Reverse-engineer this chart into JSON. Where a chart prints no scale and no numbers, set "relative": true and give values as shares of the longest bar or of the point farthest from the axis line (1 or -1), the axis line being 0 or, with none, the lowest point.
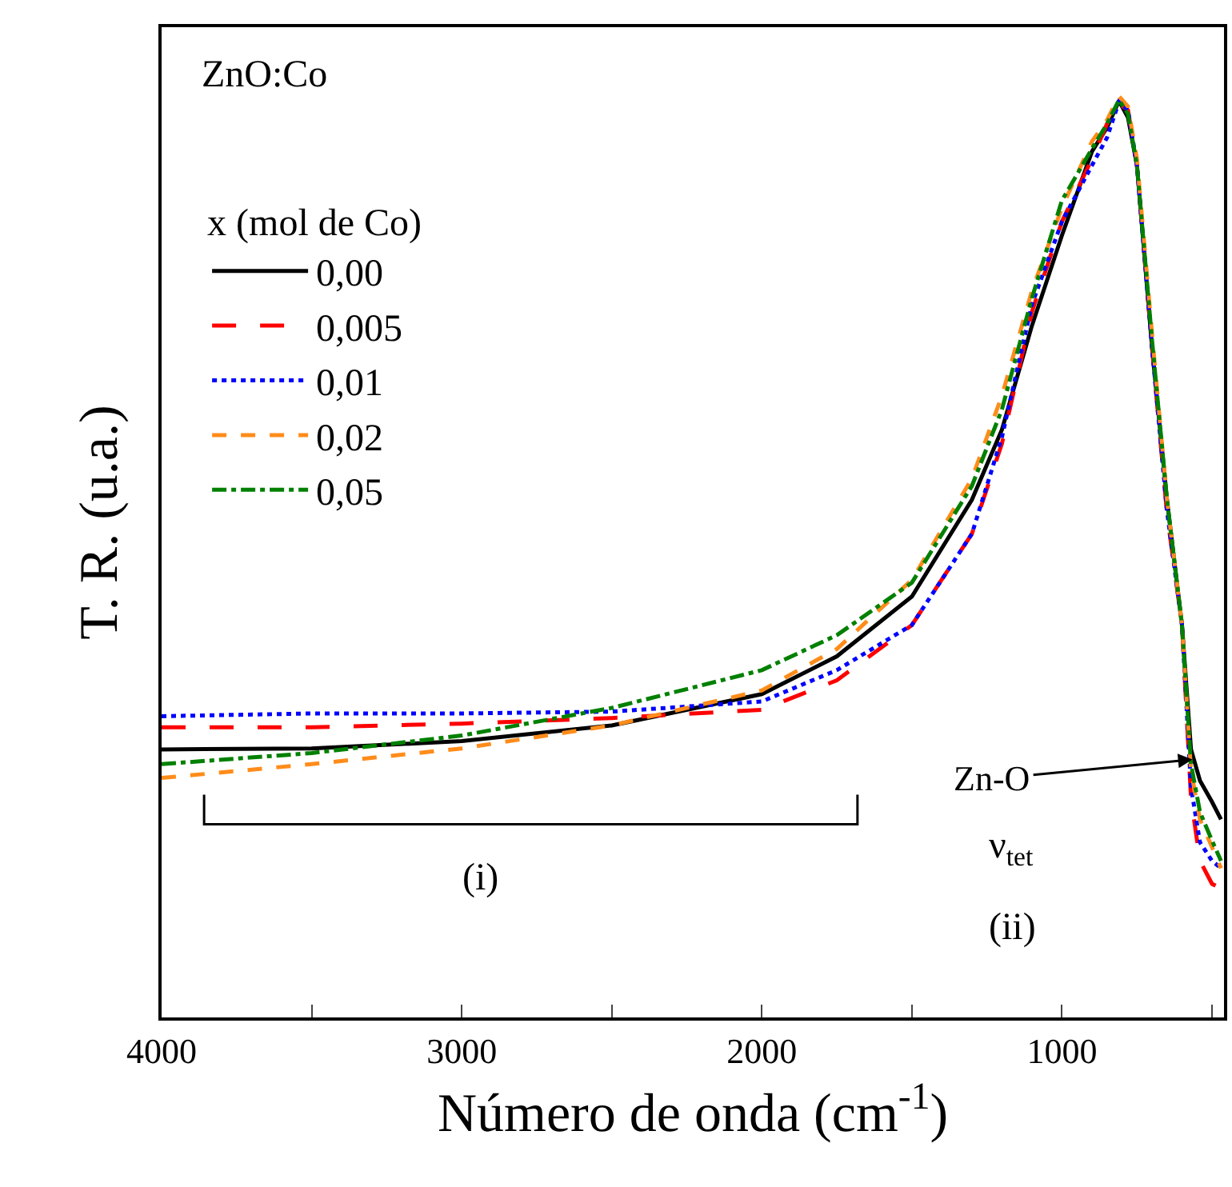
{
  "chart_data": {
    "type": "line",
    "relative": true,
    "xlabel": "Número de onda (cm$^{-1}$)",
    "ylabel": "T. R. (u.a.)",
    "legend_title": "x (mol de Co)",
    "x": [
      4000,
      3500,
      3000,
      2500,
      2000,
      1750,
      1500,
      1300,
      1200,
      1100,
      1000,
      900,
      850,
      810,
      780,
      750,
      700,
      650,
      600,
      570,
      540,
      500,
      470
    ],
    "xlim": [
      4000,
      460
    ],
    "xticks": [
      4000,
      {
        "value": 3500,
        "label": null
      },
      3000,
      {
        "value": 2500,
        "label": null
      },
      2000,
      {
        "value": 1500,
        "label": null
      },
      1000,
      {
        "value": 500,
        "label": null
      }
    ],
    "series": [
      {
        "name": "0,00",
        "color": "#000000",
        "line_style": "solid",
        "values": [
          0.291,
          0.292,
          0.3,
          0.317,
          0.351,
          0.392,
          0.457,
          0.562,
          0.638,
          0.751,
          0.849,
          0.94,
          0.966,
          0.995,
          0.977,
          0.925,
          0.728,
          0.562,
          0.426,
          0.291,
          0.257,
          0.234,
          0.215
        ]
      },
      {
        "name": "0,005",
        "color": "#ff0000",
        "line_style": "long-dashed",
        "values": [
          0.315,
          0.315,
          0.319,
          0.325,
          0.334,
          0.366,
          0.426,
          0.525,
          0.623,
          0.766,
          0.864,
          0.932,
          0.97,
          0.992,
          0.985,
          0.925,
          0.728,
          0.547,
          0.426,
          0.238,
          0.17,
          0.145,
          0.14
        ]
      },
      {
        "name": "0,01",
        "color": "#0000ff",
        "line_style": "dotted",
        "values": [
          0.327,
          0.33,
          0.33,
          0.332,
          0.343,
          0.377,
          0.426,
          0.525,
          0.63,
          0.774,
          0.864,
          0.925,
          0.955,
          0.994,
          0.985,
          0.925,
          0.728,
          0.55,
          0.426,
          0.25,
          0.19,
          0.17,
          0.162
        ]
      },
      {
        "name": "0,02",
        "color": "#ff8c1a",
        "line_style": "dashed",
        "values": [
          0.26,
          0.275,
          0.292,
          0.317,
          0.355,
          0.4,
          0.475,
          0.585,
          0.675,
          0.789,
          0.879,
          0.951,
          0.974,
          1.0,
          0.989,
          0.932,
          0.743,
          0.562,
          0.426,
          0.268,
          0.215,
          0.185,
          0.162
        ]
      },
      {
        "name": "0,05",
        "color": "#008000",
        "line_style": "dash-dot",
        "values": [
          0.275,
          0.287,
          0.306,
          0.336,
          0.377,
          0.415,
          0.472,
          0.577,
          0.66,
          0.781,
          0.887,
          0.943,
          0.97,
          0.996,
          0.981,
          0.925,
          0.736,
          0.562,
          0.426,
          0.275,
          0.223,
          0.192,
          0.17
        ]
      }
    ],
    "annotations": [
      "ZnO:Co",
      "(i)",
      {
        "text": "Zn-O",
        "x": 565,
        "y": 0.28
      },
      "ν$_{tet}$",
      "(ii)"
    ],
    "legend": "top left"
  }
}
